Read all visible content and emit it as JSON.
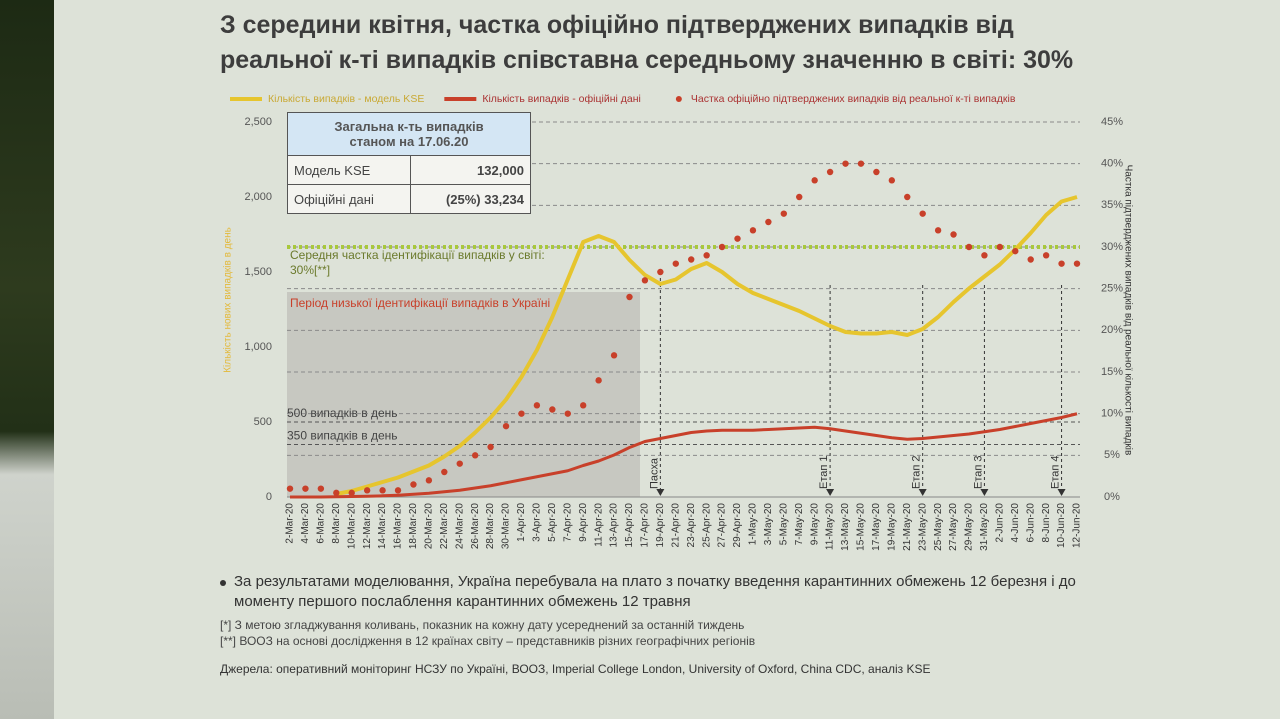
{
  "chart_data": {
    "type": "line",
    "title": "З середини квітня, частка офіційно підтверджених випадків від реальної к-ті випадків співставна середньому значенню в світі: 30%",
    "y_label": "Кількість нових випадків в день",
    "y2_label": "Частка підтверджених випадків від реальної кількості випадків",
    "categories": [
      "2-Mar-20",
      "4-Mar-20",
      "6-Mar-20",
      "8-Mar-20",
      "10-Mar-20",
      "12-Mar-20",
      "14-Mar-20",
      "16-Mar-20",
      "18-Mar-20",
      "20-Mar-20",
      "22-Mar-20",
      "24-Mar-20",
      "26-Mar-20",
      "28-Mar-20",
      "30-Mar-20",
      "1-Apr-20",
      "3-Apr-20",
      "5-Apr-20",
      "7-Apr-20",
      "9-Apr-20",
      "11-Apr-20",
      "13-Apr-20",
      "15-Apr-20",
      "17-Apr-20",
      "19-Apr-20",
      "21-Apr-20",
      "23-Apr-20",
      "25-Apr-20",
      "27-Apr-20",
      "29-Apr-20",
      "1-May-20",
      "3-May-20",
      "5-May-20",
      "7-May-20",
      "9-May-20",
      "11-May-20",
      "13-May-20",
      "15-May-20",
      "17-May-20",
      "19-May-20",
      "21-May-20",
      "23-May-20",
      "25-May-20",
      "27-May-20",
      "29-May-20",
      "31-May-20",
      "2-Jun-20",
      "4-Jun-20",
      "6-Jun-20",
      "8-Jun-20",
      "10-Jun-20",
      "12-Jun-20"
    ],
    "series": [
      {
        "name": "Кількість випадків - модель KSE",
        "color": "#e6c52e",
        "kind": "line",
        "values": [
          null,
          null,
          null,
          20,
          40,
          70,
          100,
          130,
          170,
          210,
          270,
          340,
          430,
          530,
          650,
          800,
          980,
          1200,
          1450,
          1700,
          1740,
          1700,
          1580,
          1480,
          1420,
          1450,
          1520,
          1560,
          1500,
          1420,
          1360,
          1320,
          1280,
          1240,
          1190,
          1140,
          1100,
          1090,
          1090,
          1100,
          1080,
          1120,
          1200,
          1300,
          1390,
          1470,
          1550,
          1650,
          1760,
          1880,
          1970,
          2000
        ]
      },
      {
        "name": "Кількість випадків - офіційні дані",
        "color": "#c8402a",
        "kind": "line",
        "values": [
          0,
          0,
          0,
          2,
          3,
          5,
          8,
          12,
          18,
          25,
          35,
          45,
          60,
          75,
          95,
          115,
          135,
          155,
          175,
          210,
          240,
          280,
          330,
          370,
          390,
          410,
          430,
          440,
          445,
          445,
          445,
          450,
          455,
          460,
          465,
          455,
          440,
          425,
          410,
          395,
          385,
          390,
          400,
          410,
          420,
          435,
          450,
          470,
          490,
          510,
          530,
          555
        ]
      },
      {
        "name": "Частка офіційно підтверджених випадків від реальної к-ті випадків",
        "color": "#c8402a",
        "kind": "dots",
        "axis": "y2",
        "values": [
          1,
          1,
          1,
          0.5,
          0.5,
          0.8,
          0.8,
          0.8,
          1.5,
          2,
          3,
          4,
          5,
          6,
          8.5,
          10,
          11,
          10.5,
          10,
          11,
          14,
          17,
          24,
          26,
          27,
          28,
          28.5,
          29,
          30,
          31,
          32,
          33,
          34,
          36,
          38,
          39,
          40,
          40,
          39,
          38,
          36,
          34,
          32,
          31.5,
          30,
          29,
          30,
          29.5,
          28.5,
          29,
          28,
          28
        ]
      }
    ],
    "ylim": [
      0,
      2500
    ],
    "yticks": [
      0,
      500,
      {
        "value": 1000,
        "label": "1,000"
      },
      {
        "value": 1500,
        "label": "1,500"
      },
      {
        "value": 2000,
        "label": "2,000"
      },
      {
        "value": 2500,
        "label": "2,500"
      }
    ],
    "y2lim": [
      0,
      45
    ],
    "y2ticks": [
      {
        "value": 0,
        "label": "0%"
      },
      {
        "value": 5,
        "label": "5%"
      },
      {
        "value": 10,
        "label": "10%"
      },
      {
        "value": 15,
        "label": "15%"
      },
      {
        "value": 20,
        "label": "20%"
      },
      {
        "value": 25,
        "label": "25%"
      },
      {
        "value": 30,
        "label": "30%"
      },
      {
        "value": 35,
        "label": "35%"
      },
      {
        "value": 40,
        "label": "40%"
      },
      {
        "value": 45,
        "label": "45%"
      }
    ],
    "grid": true,
    "reference_lines": [
      {
        "value": 500,
        "label": "500 випадків в день"
      },
      {
        "value": 350,
        "label": "350 випадків в день"
      },
      {
        "value": 30,
        "axis": "y2",
        "color": "#a8c83c",
        "label": "Середня частка ідентифікації випадків у світі: 30%[**]"
      }
    ],
    "shaded_label": "Період низької ідентифікації випадків в Україні",
    "events": [
      {
        "at": "19-Apr-20",
        "label": "Пасха"
      },
      {
        "at": "11-May-20",
        "label": "Етап 1"
      },
      {
        "at": "23-May-20",
        "label": "Етап 2"
      },
      {
        "at": "31-May-20",
        "label": "Етап 3"
      },
      {
        "at": "10-Jun-20",
        "label": "Етап 4"
      }
    ],
    "table": {
      "header": "Загальна к-ть випадків станом на 17.06.20",
      "rows": [
        [
          "Модель KSE",
          "132,000"
        ],
        [
          "Офіційні дані",
          "(25%) 33,234"
        ]
      ]
    }
  },
  "notes": {
    "bullet": "За результатами моделювання, Україна перебувала на плато з початку введення карантинних обмежень 12 березня і до моменту першого послаблення карантинних обмежень 12 травня",
    "footnotes": [
      "[*] З метою згладжування коливань, показник на кожну дату усереднений за останній тиждень",
      "[**] ВООЗ на основі дослідження в 12 країнах світу – представників різних географічних регіонів"
    ],
    "source": "Джерела: оперативний моніторинг НСЗУ по Україні, ВООЗ, Imperial College London, University of Oxford, China CDC, аналіз KSE"
  }
}
